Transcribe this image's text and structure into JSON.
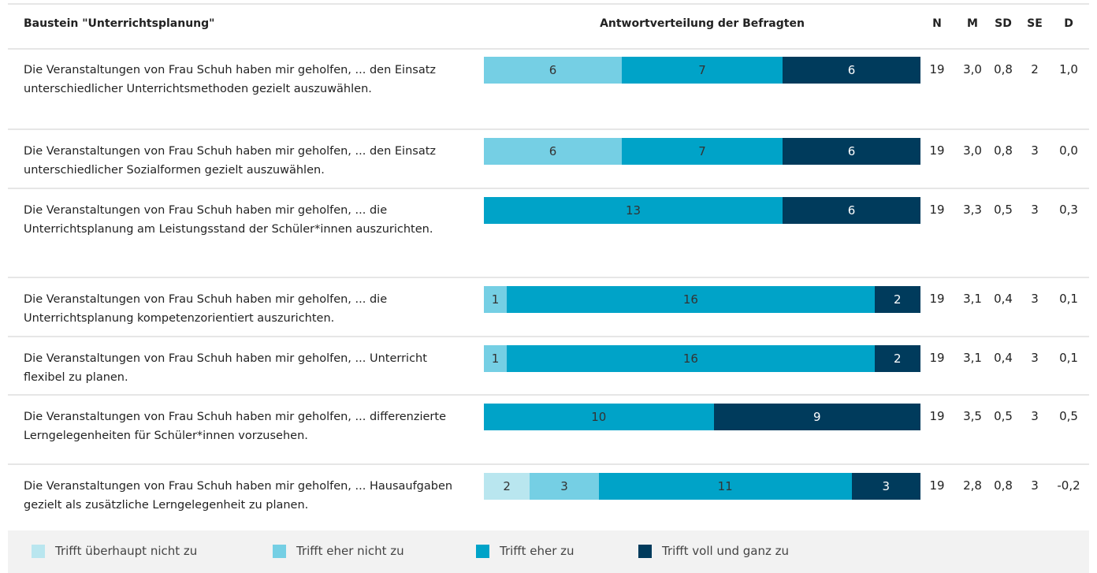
{
  "header": {
    "item": "Baustein \"Unterrichtsplanung\"",
    "distribution": "Antwortverteilung der Befragten",
    "columns": [
      "N",
      "M",
      "SD",
      "SE",
      "D"
    ]
  },
  "legend": [
    {
      "name": "Trifft überhaupt nicht zu",
      "color": "#b9e6ef"
    },
    {
      "name": "Trifft eher nicht zu",
      "color": "#75cfe4"
    },
    {
      "name": "Trifft eher zu",
      "color": "#00a3c8"
    },
    {
      "name": "Trifft voll und ganz zu",
      "color": "#003b5c"
    }
  ],
  "rows": [
    {
      "label": "Die Veranstaltungen von Frau Schuh haben mir geholfen, ... den Einsatz unterschiedlicher Unterrichtsmethoden gezielt auszuwählen.",
      "counts": [
        null,
        6,
        7,
        6
      ],
      "stats": [
        19,
        "3,0",
        "0,8",
        2,
        "1,0"
      ]
    },
    {
      "label": "Die Veranstaltungen von Frau Schuh haben mir geholfen, ... den Einsatz unterschiedlicher Sozialformen gezielt auszuwählen.",
      "counts": [
        null,
        6,
        7,
        6
      ],
      "stats": [
        19,
        "3,0",
        "0,8",
        3,
        "0,0"
      ]
    },
    {
      "label": "Die Veranstaltungen von Frau Schuh haben mir geholfen, ... die Unterrichtsplanung am Leistungsstand der Schüler*innen auszurichten.",
      "counts": [
        null,
        null,
        13,
        6
      ],
      "stats": [
        19,
        "3,3",
        "0,5",
        3,
        "0,3"
      ]
    },
    {
      "label": "Die Veranstaltungen von Frau Schuh haben mir geholfen, ... die Unterrichtsplanung kompetenzorientiert auszurichten.",
      "counts": [
        null,
        1,
        16,
        2
      ],
      "stats": [
        19,
        "3,1",
        "0,4",
        3,
        "0,1"
      ]
    },
    {
      "label": "Die Veranstaltungen von Frau Schuh haben mir geholfen, ... Unterricht flexibel zu planen.",
      "counts": [
        null,
        1,
        16,
        2
      ],
      "stats": [
        19,
        "3,1",
        "0,4",
        3,
        "0,1"
      ]
    },
    {
      "label": "Die Veranstaltungen von Frau Schuh haben mir geholfen, ... differenzierte Lerngelegenheiten für Schüler*innen vorzusehen.",
      "counts": [
        null,
        null,
        10,
        9
      ],
      "stats": [
        19,
        "3,5",
        "0,5",
        3,
        "0,5"
      ]
    },
    {
      "label": "Die Veranstaltungen von Frau Schuh haben mir geholfen, ... Hausaufgaben gezielt als zusätzliche Lerngelegenheit zu planen.",
      "counts": [
        2,
        3,
        11,
        3
      ],
      "stats": [
        19,
        "2,8",
        "0,8",
        3,
        "-0,2"
      ]
    }
  ]
}
